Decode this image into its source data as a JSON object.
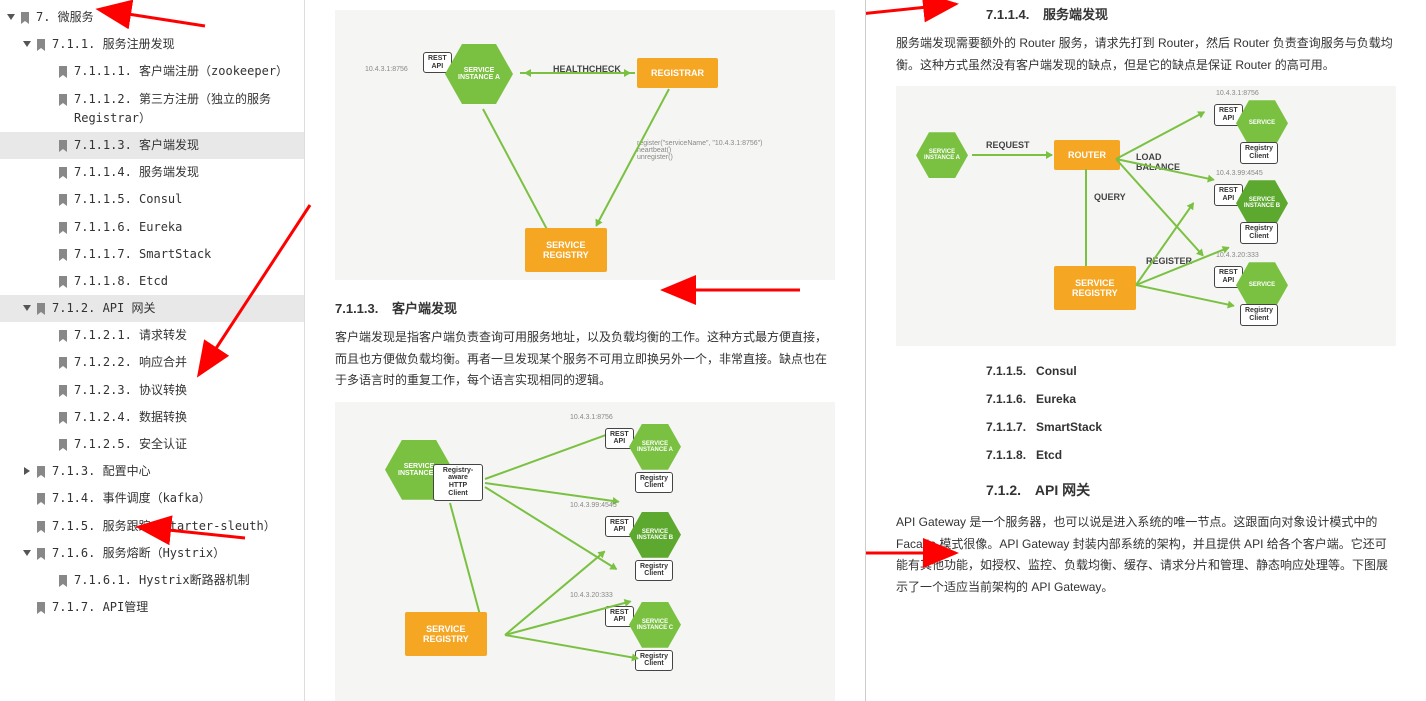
{
  "sidebar": {
    "items": [
      {
        "level": 0,
        "toggle": "down",
        "label": "7.   微服务",
        "selected": false
      },
      {
        "level": 1,
        "toggle": "down",
        "label": "7.1.1. 服务注册发现",
        "selected": false
      },
      {
        "level": 2,
        "toggle": null,
        "label": "7.1.1.1. 客户端注册（zookeeper）",
        "selected": false
      },
      {
        "level": 2,
        "toggle": null,
        "label": "7.1.1.2. 第三方注册（独立的服务Registrar）",
        "selected": false
      },
      {
        "level": 2,
        "toggle": null,
        "label": "7.1.1.3. 客户端发现",
        "selected": true
      },
      {
        "level": 2,
        "toggle": null,
        "label": "7.1.1.4. 服务端发现",
        "selected": false
      },
      {
        "level": 2,
        "toggle": null,
        "label": "7.1.1.5. Consul",
        "selected": false
      },
      {
        "level": 2,
        "toggle": null,
        "label": "7.1.1.6. Eureka",
        "selected": false
      },
      {
        "level": 2,
        "toggle": null,
        "label": "7.1.1.7. SmartStack",
        "selected": false
      },
      {
        "level": 2,
        "toggle": null,
        "label": "7.1.1.8. Etcd",
        "selected": false
      },
      {
        "level": 1,
        "toggle": "down",
        "label": "7.1.2. API 网关",
        "selected": true
      },
      {
        "level": 2,
        "toggle": null,
        "label": "7.1.2.1. 请求转发",
        "selected": false
      },
      {
        "level": 2,
        "toggle": null,
        "label": "7.1.2.2. 响应合并",
        "selected": false
      },
      {
        "level": 2,
        "toggle": null,
        "label": "7.1.2.3. 协议转换",
        "selected": false
      },
      {
        "level": 2,
        "toggle": null,
        "label": "7.1.2.4. 数据转换",
        "selected": false
      },
      {
        "level": 2,
        "toggle": null,
        "label": "7.1.2.5. 安全认证",
        "selected": false
      },
      {
        "level": 1,
        "toggle": "right",
        "label": "7.1.3. 配置中心",
        "selected": false
      },
      {
        "level": 1,
        "toggle": null,
        "label": "7.1.4. 事件调度（kafka）",
        "selected": false
      },
      {
        "level": 1,
        "toggle": null,
        "label": "7.1.5. 服务跟踪（starter-sleuth）",
        "selected": false
      },
      {
        "level": 1,
        "toggle": "down",
        "label": "7.1.6. 服务熔断（Hystrix）",
        "selected": false
      },
      {
        "level": 2,
        "toggle": null,
        "label": "7.1.6.1. Hystrix断路器机制",
        "selected": false
      },
      {
        "level": 1,
        "toggle": null,
        "label": "7.1.7. API管理",
        "selected": false
      }
    ]
  },
  "col1": {
    "diagram1": {
      "bg": "#f5f5f3",
      "ip1": "10.4.3.1:8756",
      "rest": "REST\nAPI",
      "service_a": "SERVICE\nINSTANCE A",
      "healthcheck": "HEALTHCHECK",
      "registrar": "REGISTRAR",
      "register_text": "register(\"serviceName\", \"10.4.3.1:8756\")\nheartbeat()\nunregister()",
      "service_registry": "SERVICE\nREGISTRY",
      "colors": {
        "green": "#7ac142",
        "green2": "#5da82e",
        "orange": "#f5a623",
        "border": "#444"
      }
    },
    "sec_7113_num": "7.1.1.3.",
    "sec_7113_title": "客户端发现",
    "sec_7113_body": "客户端发现是指客户端负责查询可用服务地址，以及负载均衡的工作。这种方式最方便直接，而且也方便做负载均衡。再者一旦发现某个服务不可用立即换另外一个，非常直接。缺点也在于多语言时的重复工作，每个语言实现相同的逻辑。",
    "diagram2": {
      "ip1": "10.4.3.1:8756",
      "ip2": "10.4.3.99:4545",
      "ip3": "10.4.3.20:333",
      "rest": "REST\nAPI",
      "service_a": "SERVICE\nINSTANCE A",
      "service_b": "SERVICE\nINSTANCE B",
      "service_c": "SERVICE\nINSTANCE C",
      "http_client": "Registry-\naware\nHTTP\nClient",
      "registry_client": "Registry\nClient",
      "service_registry": "SERVICE\nREGISTRY"
    }
  },
  "col2": {
    "sec_7114_num": "7.1.1.4.",
    "sec_7114_title": "服务端发现",
    "sec_7114_body": "服务端发现需要额外的 Router 服务，请求先打到 Router，然后 Router 负责查询服务与负载均衡。这种方式虽然没有客户端发现的缺点，但是它的缺点是保证 Router 的高可用。",
    "diagram3": {
      "ip1": "10.4.3.1:8756",
      "ip2": "10.4.3.99:4545",
      "ip3": "10.4.3.20:333",
      "service_a": "SERVICE\nINSTANCE A",
      "request": "REQUEST",
      "router": "ROUTER",
      "load_balance": "LOAD\nBALANCE",
      "query": "QUERY",
      "register": "REGISTER",
      "rest": "REST\nAPI",
      "service": "SERVICE",
      "registry_client": "Registry\nClient",
      "service_registry": "SERVICE\nREGISTRY"
    },
    "subs": [
      {
        "num": "7.1.1.5.",
        "title": "Consul"
      },
      {
        "num": "7.1.1.6.",
        "title": "Eureka"
      },
      {
        "num": "7.1.1.7.",
        "title": "SmartStack"
      },
      {
        "num": "7.1.1.8.",
        "title": "Etcd"
      }
    ],
    "sec_712_num": "7.1.2.",
    "sec_712_title": "API 网关",
    "sec_712_body": "API Gateway 是一个服务器，也可以说是进入系统的唯一节点。这跟面向对象设计模式中的 Facade 模式很像。API Gateway 封装内部系统的架构，并且提供 API 给各个客户端。它还可能有其他功能，如授权、监控、负载均衡、缓存、请求分片和管理、静态响应处理等。下图展示了一个适应当前架构的 API Gateway。"
  },
  "red_arrows": {
    "color": "#ff0000",
    "stroke": 3
  }
}
